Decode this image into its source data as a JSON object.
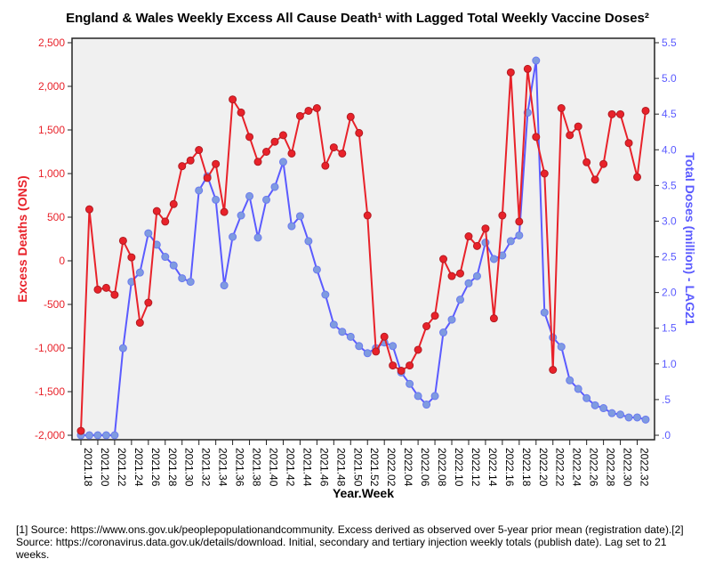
{
  "chart_data": {
    "type": "line",
    "title": "England & Wales Weekly Excess All Cause Death¹ with Lagged Total Weekly Vaccine Doses²",
    "xlabel": "Year.Week",
    "ylabel": "Excess Deaths (ONS)",
    "y2label": "Total Doses (million) - LAG21",
    "ylim": [
      -2000,
      2500
    ],
    "y2lim": [
      0,
      5.5
    ],
    "yticks": [
      "-2,000",
      "-1,500",
      "-1,000",
      "-500",
      "0",
      "500",
      "1,000",
      "1,500",
      "2,000",
      "2,500"
    ],
    "y2ticks": [
      ".0",
      ".5",
      "1.0",
      "1.5",
      "2.0",
      "2.5",
      "3.0",
      "3.5",
      "4.0",
      "4.5",
      "5.0",
      "5.5"
    ],
    "xtick_labels": [
      "2021.18",
      "2021.20",
      "2021.22",
      "2021.24",
      "2021.26",
      "2021.28",
      "2021.30",
      "2021.32",
      "2021.34",
      "2021.36",
      "2021.38",
      "2021.40",
      "2021.42",
      "2021.44",
      "2021.46",
      "2021.48",
      "2021.50",
      "2021.52",
      "2022.02",
      "2022.04",
      "2022.06",
      "2022.08",
      "2022.10",
      "2022.12",
      "2022.14",
      "2022.16",
      "2022.18",
      "2022.20",
      "2022.22",
      "2022.24",
      "2022.26",
      "2022.28",
      "2022.30",
      "2022.32"
    ],
    "series": [
      {
        "name": "Excess Deaths (ONS)",
        "color": "#e8222a",
        "axis": "left",
        "values": [
          -1950,
          590,
          -330,
          -310,
          -390,
          230,
          40,
          -710,
          -480,
          570,
          450,
          650,
          1085,
          1150,
          1270,
          950,
          1110,
          560,
          1850,
          1700,
          1420,
          1135,
          1250,
          1365,
          1440,
          1230,
          1660,
          1720,
          1750,
          1090,
          1300,
          1230,
          1650,
          1465,
          520,
          -1040,
          -870,
          -1200,
          -1260,
          -1200,
          -1020,
          -750,
          -630,
          20,
          -175,
          -145,
          280,
          170,
          370,
          -660,
          520,
          2160,
          450,
          2200,
          1420,
          1000,
          -1250,
          1750,
          1440,
          1540,
          1130,
          930,
          1110,
          1680,
          1680,
          1350,
          960,
          1720
        ]
      },
      {
        "name": "Total Doses (million) - LAG21",
        "color": "#5b5bff",
        "axis": "right",
        "values": [
          0,
          0,
          0,
          0,
          0,
          1.22,
          2.15,
          2.28,
          2.83,
          2.67,
          2.5,
          2.38,
          2.2,
          2.15,
          3.43,
          3.63,
          3.3,
          2.1,
          2.78,
          3.08,
          3.35,
          2.77,
          3.3,
          3.48,
          3.83,
          2.93,
          3.07,
          2.72,
          2.32,
          1.97,
          1.55,
          1.45,
          1.38,
          1.25,
          1.15,
          1.22,
          1.3,
          1.25,
          0.88,
          0.72,
          0.55,
          0.43,
          0.55,
          1.44,
          1.62,
          1.9,
          2.13,
          2.23,
          2.7,
          2.47,
          2.52,
          2.72,
          2.8,
          4.52,
          5.25,
          1.72,
          1.37,
          1.24,
          0.77,
          0.65,
          0.52,
          0.42,
          0.38,
          0.31,
          0.29,
          0.25,
          0.25,
          0.22
        ]
      }
    ],
    "grid": false
  },
  "footnote": "[1] Source: https://www.ons.gov.uk/peoplepopulationandcommunity. Excess derived as observed over 5-year prior mean (registration date).[2] Source: https://coronavirus.data.gov.uk/details/download. Initial, secondary and tertiary injection weekly totals (publish date). Lag set to 21 weeks.",
  "colors": {
    "left_axis": "#e8222a",
    "right_axis": "#5b5bff",
    "plot_bg": "#f0f0f0"
  }
}
